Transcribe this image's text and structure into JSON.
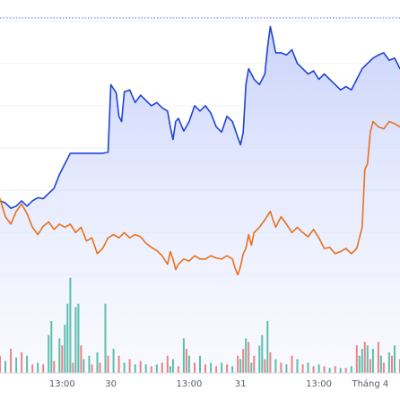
{
  "chart_data": {
    "type": "line",
    "title": "",
    "xlabel": "",
    "ylabel": "",
    "grid": true,
    "x_ticks": [
      {
        "label": "13:00",
        "at": 23
      },
      {
        "label": "30",
        "at": 41
      },
      {
        "label": "13:00",
        "at": 70
      },
      {
        "label": "31",
        "at": 89
      },
      {
        "label": "13:00",
        "at": 118
      },
      {
        "label": "Tháng 4",
        "at": 137
      }
    ],
    "reference_line": {
      "style": "dotted",
      "color": "#4a6cf7",
      "value": 102.3
    },
    "ylim": [
      76,
      104
    ],
    "volume_ylim": [
      0,
      60
    ],
    "colors": {
      "primary": "#1f45d6",
      "primary_fill_top": "#c7d1fb",
      "primary_fill_bottom": "#eef1fe",
      "secondary": "#e8711f",
      "volume_up": "#5bbfae",
      "volume_down": "#e98484",
      "grid": "#edf0f3",
      "baseline": "#d8dce2"
    },
    "series": [
      {
        "role": "primary",
        "values": [
          {
            "x": 0,
            "y": 85.0
          },
          {
            "x": 2,
            "y": 84.8
          },
          {
            "x": 4,
            "y": 84.3
          },
          {
            "x": 6,
            "y": 84.5
          },
          {
            "x": 8,
            "y": 85.0
          },
          {
            "x": 10,
            "y": 84.5
          },
          {
            "x": 12,
            "y": 85.0
          },
          {
            "x": 14,
            "y": 85.3
          },
          {
            "x": 16,
            "y": 85.2
          },
          {
            "x": 18,
            "y": 85.7
          },
          {
            "x": 20,
            "y": 86.2
          },
          {
            "x": 22,
            "y": 87.5
          },
          {
            "x": 24,
            "y": 88.5
          },
          {
            "x": 26,
            "y": 89.5
          },
          {
            "x": 28,
            "y": 89.5
          },
          {
            "x": 30,
            "y": 89.5
          },
          {
            "x": 32,
            "y": 89.5
          },
          {
            "x": 34,
            "y": 89.5
          },
          {
            "x": 36,
            "y": 89.5
          },
          {
            "x": 38,
            "y": 89.5
          },
          {
            "x": 40,
            "y": 89.6
          },
          {
            "x": 41,
            "y": 96.0
          },
          {
            "x": 43,
            "y": 95.2
          },
          {
            "x": 44,
            "y": 93.0
          },
          {
            "x": 45,
            "y": 92.5
          },
          {
            "x": 46,
            "y": 95.3
          },
          {
            "x": 48,
            "y": 95.5
          },
          {
            "x": 50,
            "y": 94.3
          },
          {
            "x": 52,
            "y": 95.0
          },
          {
            "x": 54,
            "y": 94.5
          },
          {
            "x": 56,
            "y": 94.0
          },
          {
            "x": 58,
            "y": 94.3
          },
          {
            "x": 60,
            "y": 93.8
          },
          {
            "x": 62,
            "y": 93.5
          },
          {
            "x": 63,
            "y": 92.0
          },
          {
            "x": 64,
            "y": 90.8
          },
          {
            "x": 65,
            "y": 92.5
          },
          {
            "x": 66,
            "y": 92.8
          },
          {
            "x": 68,
            "y": 91.6
          },
          {
            "x": 70,
            "y": 92.5
          },
          {
            "x": 72,
            "y": 94.0
          },
          {
            "x": 74,
            "y": 93.5
          },
          {
            "x": 76,
            "y": 94.0
          },
          {
            "x": 78,
            "y": 93.3
          },
          {
            "x": 80,
            "y": 92.0
          },
          {
            "x": 82,
            "y": 91.5
          },
          {
            "x": 84,
            "y": 93.0
          },
          {
            "x": 86,
            "y": 92.5
          },
          {
            "x": 88,
            "y": 91.0
          },
          {
            "x": 89,
            "y": 90.3
          },
          {
            "x": 90,
            "y": 91.5
          },
          {
            "x": 91,
            "y": 96.0
          },
          {
            "x": 92,
            "y": 97.5
          },
          {
            "x": 93,
            "y": 97.0
          },
          {
            "x": 94,
            "y": 96.5
          },
          {
            "x": 96,
            "y": 96.0
          },
          {
            "x": 98,
            "y": 97.0
          },
          {
            "x": 99,
            "y": 99.5
          },
          {
            "x": 100,
            "y": 101.5
          },
          {
            "x": 101,
            "y": 100.3
          },
          {
            "x": 102,
            "y": 99.0
          },
          {
            "x": 104,
            "y": 99.0
          },
          {
            "x": 106,
            "y": 98.8
          },
          {
            "x": 108,
            "y": 99.3
          },
          {
            "x": 110,
            "y": 98.0
          },
          {
            "x": 112,
            "y": 97.5
          },
          {
            "x": 114,
            "y": 97.0
          },
          {
            "x": 116,
            "y": 97.3
          },
          {
            "x": 118,
            "y": 96.5
          },
          {
            "x": 120,
            "y": 97.0
          },
          {
            "x": 122,
            "y": 96.5
          },
          {
            "x": 124,
            "y": 96.0
          },
          {
            "x": 126,
            "y": 95.5
          },
          {
            "x": 128,
            "y": 95.8
          },
          {
            "x": 130,
            "y": 95.5
          },
          {
            "x": 132,
            "y": 96.5
          },
          {
            "x": 134,
            "y": 97.5
          },
          {
            "x": 136,
            "y": 98.0
          },
          {
            "x": 138,
            "y": 98.5
          },
          {
            "x": 140,
            "y": 98.8
          },
          {
            "x": 142,
            "y": 99.0
          },
          {
            "x": 144,
            "y": 98.3
          },
          {
            "x": 146,
            "y": 98.5
          },
          {
            "x": 148,
            "y": 97.5
          }
        ]
      },
      {
        "role": "secondary",
        "values": [
          {
            "x": 0,
            "y": 85.2
          },
          {
            "x": 2,
            "y": 83.5
          },
          {
            "x": 4,
            "y": 82.8
          },
          {
            "x": 6,
            "y": 84.0
          },
          {
            "x": 8,
            "y": 84.7
          },
          {
            "x": 10,
            "y": 83.8
          },
          {
            "x": 12,
            "y": 82.5
          },
          {
            "x": 14,
            "y": 81.8
          },
          {
            "x": 16,
            "y": 82.6
          },
          {
            "x": 18,
            "y": 83.0
          },
          {
            "x": 20,
            "y": 82.3
          },
          {
            "x": 22,
            "y": 82.8
          },
          {
            "x": 24,
            "y": 82.5
          },
          {
            "x": 26,
            "y": 82.8
          },
          {
            "x": 28,
            "y": 82.0
          },
          {
            "x": 30,
            "y": 82.5
          },
          {
            "x": 32,
            "y": 81.2
          },
          {
            "x": 34,
            "y": 81.5
          },
          {
            "x": 36,
            "y": 80.0
          },
          {
            "x": 38,
            "y": 80.5
          },
          {
            "x": 40,
            "y": 81.5
          },
          {
            "x": 42,
            "y": 81.8
          },
          {
            "x": 44,
            "y": 81.5
          },
          {
            "x": 46,
            "y": 82.0
          },
          {
            "x": 48,
            "y": 81.5
          },
          {
            "x": 50,
            "y": 81.8
          },
          {
            "x": 52,
            "y": 81.6
          },
          {
            "x": 54,
            "y": 81.0
          },
          {
            "x": 56,
            "y": 80.6
          },
          {
            "x": 58,
            "y": 80.3
          },
          {
            "x": 60,
            "y": 79.8
          },
          {
            "x": 62,
            "y": 79.0
          },
          {
            "x": 63,
            "y": 80.2
          },
          {
            "x": 64,
            "y": 79.5
          },
          {
            "x": 65,
            "y": 78.5
          },
          {
            "x": 66,
            "y": 79.0
          },
          {
            "x": 68,
            "y": 79.5
          },
          {
            "x": 70,
            "y": 79.3
          },
          {
            "x": 72,
            "y": 79.8
          },
          {
            "x": 74,
            "y": 79.5
          },
          {
            "x": 76,
            "y": 79.5
          },
          {
            "x": 78,
            "y": 79.8
          },
          {
            "x": 80,
            "y": 79.6
          },
          {
            "x": 82,
            "y": 79.5
          },
          {
            "x": 84,
            "y": 79.8
          },
          {
            "x": 86,
            "y": 79.5
          },
          {
            "x": 87,
            "y": 78.6
          },
          {
            "x": 88,
            "y": 78.0
          },
          {
            "x": 89,
            "y": 78.8
          },
          {
            "x": 90,
            "y": 80.0
          },
          {
            "x": 91,
            "y": 80.5
          },
          {
            "x": 92,
            "y": 81.8
          },
          {
            "x": 93,
            "y": 80.8
          },
          {
            "x": 94,
            "y": 82.0
          },
          {
            "x": 96,
            "y": 82.5
          },
          {
            "x": 98,
            "y": 83.2
          },
          {
            "x": 100,
            "y": 84.0
          },
          {
            "x": 101,
            "y": 83.2
          },
          {
            "x": 102,
            "y": 82.5
          },
          {
            "x": 104,
            "y": 83.5
          },
          {
            "x": 106,
            "y": 82.8
          },
          {
            "x": 108,
            "y": 82.0
          },
          {
            "x": 110,
            "y": 82.5
          },
          {
            "x": 112,
            "y": 82.0
          },
          {
            "x": 114,
            "y": 81.6
          },
          {
            "x": 116,
            "y": 82.3
          },
          {
            "x": 118,
            "y": 81.5
          },
          {
            "x": 120,
            "y": 80.5
          },
          {
            "x": 122,
            "y": 80.6
          },
          {
            "x": 124,
            "y": 80.0
          },
          {
            "x": 126,
            "y": 80.2
          },
          {
            "x": 128,
            "y": 80.5
          },
          {
            "x": 130,
            "y": 80.0
          },
          {
            "x": 132,
            "y": 80.5
          },
          {
            "x": 133,
            "y": 81.5
          },
          {
            "x": 134,
            "y": 82.5
          },
          {
            "x": 135,
            "y": 88.0
          },
          {
            "x": 136,
            "y": 88.5
          },
          {
            "x": 137,
            "y": 91.5
          },
          {
            "x": 138,
            "y": 92.5
          },
          {
            "x": 140,
            "y": 92.0
          },
          {
            "x": 142,
            "y": 91.8
          },
          {
            "x": 144,
            "y": 92.5
          },
          {
            "x": 146,
            "y": 92.3
          },
          {
            "x": 148,
            "y": 92.0
          }
        ]
      }
    ],
    "volume": [
      {
        "x": 0,
        "v": 10,
        "up": false
      },
      {
        "x": 2,
        "v": 7,
        "up": true
      },
      {
        "x": 4,
        "v": 14,
        "up": false
      },
      {
        "x": 6,
        "v": 9,
        "up": true
      },
      {
        "x": 8,
        "v": 12,
        "up": false
      },
      {
        "x": 10,
        "v": 10,
        "up": true
      },
      {
        "x": 12,
        "v": 5,
        "up": false
      },
      {
        "x": 14,
        "v": 6,
        "up": true
      },
      {
        "x": 16,
        "v": 5,
        "up": false
      },
      {
        "x": 18,
        "v": 22,
        "up": true
      },
      {
        "x": 19,
        "v": 30,
        "up": true
      },
      {
        "x": 20,
        "v": 7,
        "up": false
      },
      {
        "x": 22,
        "v": 20,
        "up": true
      },
      {
        "x": 23,
        "v": 16,
        "up": false
      },
      {
        "x": 24,
        "v": 28,
        "up": true
      },
      {
        "x": 25,
        "v": 40,
        "up": true
      },
      {
        "x": 26,
        "v": 55,
        "up": true
      },
      {
        "x": 27,
        "v": 6,
        "up": false
      },
      {
        "x": 28,
        "v": 38,
        "up": true
      },
      {
        "x": 29,
        "v": 40,
        "up": true
      },
      {
        "x": 30,
        "v": 16,
        "up": false
      },
      {
        "x": 31,
        "v": 8,
        "up": true
      },
      {
        "x": 33,
        "v": 10,
        "up": true
      },
      {
        "x": 34,
        "v": 5,
        "up": false
      },
      {
        "x": 36,
        "v": 12,
        "up": true
      },
      {
        "x": 37,
        "v": 6,
        "up": false
      },
      {
        "x": 39,
        "v": 40,
        "up": true
      },
      {
        "x": 40,
        "v": 10,
        "up": false
      },
      {
        "x": 42,
        "v": 14,
        "up": true
      },
      {
        "x": 44,
        "v": 10,
        "up": false
      },
      {
        "x": 46,
        "v": 6,
        "up": true
      },
      {
        "x": 48,
        "v": 8,
        "up": false
      },
      {
        "x": 50,
        "v": 5,
        "up": true
      },
      {
        "x": 52,
        "v": 7,
        "up": false
      },
      {
        "x": 54,
        "v": 5,
        "up": true
      },
      {
        "x": 56,
        "v": 4,
        "up": false
      },
      {
        "x": 58,
        "v": 5,
        "up": true
      },
      {
        "x": 60,
        "v": 6,
        "up": false
      },
      {
        "x": 62,
        "v": 10,
        "up": false
      },
      {
        "x": 63,
        "v": 4,
        "up": true
      },
      {
        "x": 64,
        "v": 8,
        "up": true
      },
      {
        "x": 66,
        "v": 4,
        "up": false
      },
      {
        "x": 68,
        "v": 20,
        "up": true
      },
      {
        "x": 69,
        "v": 14,
        "up": false
      },
      {
        "x": 70,
        "v": 10,
        "up": true
      },
      {
        "x": 72,
        "v": 6,
        "up": false
      },
      {
        "x": 74,
        "v": 10,
        "up": true
      },
      {
        "x": 76,
        "v": 5,
        "up": false
      },
      {
        "x": 78,
        "v": 6,
        "up": true
      },
      {
        "x": 80,
        "v": 4,
        "up": false
      },
      {
        "x": 82,
        "v": 6,
        "up": true
      },
      {
        "x": 84,
        "v": 5,
        "up": false
      },
      {
        "x": 86,
        "v": 4,
        "up": true
      },
      {
        "x": 88,
        "v": 10,
        "up": false
      },
      {
        "x": 89,
        "v": 8,
        "up": true
      },
      {
        "x": 90,
        "v": 14,
        "up": false
      },
      {
        "x": 91,
        "v": 20,
        "up": true
      },
      {
        "x": 92,
        "v": 18,
        "up": false
      },
      {
        "x": 93,
        "v": 6,
        "up": true
      },
      {
        "x": 94,
        "v": 10,
        "up": false
      },
      {
        "x": 96,
        "v": 16,
        "up": true
      },
      {
        "x": 97,
        "v": 22,
        "up": true
      },
      {
        "x": 98,
        "v": 8,
        "up": false
      },
      {
        "x": 99,
        "v": 30,
        "up": true
      },
      {
        "x": 100,
        "v": 12,
        "up": false
      },
      {
        "x": 102,
        "v": 8,
        "up": true
      },
      {
        "x": 104,
        "v": 6,
        "up": false
      },
      {
        "x": 106,
        "v": 5,
        "up": true
      },
      {
        "x": 108,
        "v": 10,
        "up": false
      },
      {
        "x": 110,
        "v": 8,
        "up": true
      },
      {
        "x": 112,
        "v": 5,
        "up": false
      },
      {
        "x": 114,
        "v": 6,
        "up": true
      },
      {
        "x": 116,
        "v": 4,
        "up": false
      },
      {
        "x": 118,
        "v": 5,
        "up": true
      },
      {
        "x": 120,
        "v": 4,
        "up": false
      },
      {
        "x": 122,
        "v": 3,
        "up": true
      },
      {
        "x": 124,
        "v": 4,
        "up": false
      },
      {
        "x": 126,
        "v": 3,
        "up": true
      },
      {
        "x": 128,
        "v": 3,
        "up": false
      },
      {
        "x": 130,
        "v": 4,
        "up": true
      },
      {
        "x": 132,
        "v": 16,
        "up": false
      },
      {
        "x": 133,
        "v": 10,
        "up": true
      },
      {
        "x": 134,
        "v": 14,
        "up": true
      },
      {
        "x": 135,
        "v": 18,
        "up": false
      },
      {
        "x": 136,
        "v": 16,
        "up": true
      },
      {
        "x": 137,
        "v": 8,
        "up": false
      },
      {
        "x": 138,
        "v": 14,
        "up": true
      },
      {
        "x": 140,
        "v": 18,
        "up": false
      },
      {
        "x": 141,
        "v": 10,
        "up": true
      },
      {
        "x": 142,
        "v": 6,
        "up": false
      },
      {
        "x": 144,
        "v": 12,
        "up": true
      },
      {
        "x": 145,
        "v": 10,
        "up": false
      },
      {
        "x": 146,
        "v": 16,
        "up": true
      },
      {
        "x": 148,
        "v": 8,
        "up": false
      }
    ],
    "x_range": [
      0,
      148
    ]
  }
}
